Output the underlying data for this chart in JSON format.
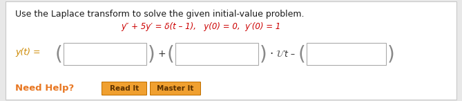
{
  "bg_color": "#e8e8e8",
  "panel_color": "#ffffff",
  "panel_border": "#c8c8c8",
  "title_text": "Use the Laplace transform to solve the given initial-value problem.",
  "title_color": "#1a1a1a",
  "title_fontsize": 9.0,
  "eq_line1": "y″ + 5y′ = δ(t – 1),   y(0) = 0,  y′(0) = 1",
  "eq_color": "#cc0000",
  "eq_fontsize": 8.5,
  "yt_label": "y(t) =",
  "yt_color": "#cc8800",
  "yt_fontsize": 9.0,
  "paren_color": "#888888",
  "paren_fontsize": 18,
  "box_edge_color": "#aaaaaa",
  "plus_color": "#333333",
  "dot_color": "#333333",
  "u_color": "#666666",
  "t_minus_color": "#333333",
  "need_help_text": "Need Help?",
  "need_help_color": "#e87722",
  "need_help_fontsize": 9.5,
  "btn1_text": "Read It",
  "btn2_text": "Master It",
  "btn_face_color": "#f0a030",
  "btn_border_color": "#c07000",
  "btn_text_color": "#5a3000",
  "btn_text_fontsize": 7.5
}
